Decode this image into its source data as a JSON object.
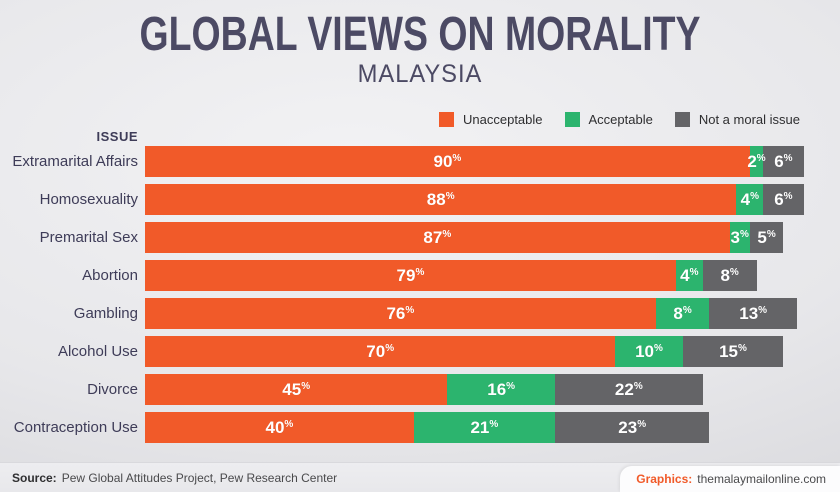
{
  "header": {
    "title": "GLOBAL VIEWS ON MORALITY",
    "subtitle": "MALAYSIA"
  },
  "legend": {
    "items": [
      {
        "label": "Unacceptable",
        "color": "#f15a29"
      },
      {
        "label": "Acceptable",
        "color": "#2cb46e"
      },
      {
        "label": "Not a moral issue",
        "color": "#646467"
      }
    ]
  },
  "chart_data": {
    "type": "bar",
    "stacked": true,
    "orientation": "horizontal",
    "title": "GLOBAL VIEWS ON MORALITY",
    "subtitle": "MALAYSIA",
    "issue_header": "ISSUE",
    "categories": [
      "Extramarital Affairs",
      "Homosexuality",
      "Premarital Sex",
      "Abortion",
      "Gambling",
      "Alcohol Use",
      "Divorce",
      "Contraception Use"
    ],
    "series": [
      {
        "name": "Unacceptable",
        "color": "#f15a29",
        "values": [
          90,
          88,
          87,
          79,
          76,
          70,
          45,
          40
        ]
      },
      {
        "name": "Acceptable",
        "color": "#2cb46e",
        "values": [
          2,
          4,
          3,
          4,
          8,
          10,
          16,
          21
        ]
      },
      {
        "name": "Not a moral issue",
        "color": "#646467",
        "values": [
          6,
          6,
          5,
          8,
          13,
          15,
          22,
          23
        ]
      }
    ],
    "value_suffix": "%",
    "xlim": [
      0,
      100
    ],
    "grid": false,
    "legend_position": "top-right",
    "value_labels": "inside-center"
  },
  "footer": {
    "source_label": "Source:",
    "source_text": "Pew Global Attitudes Project, Pew Research Center",
    "graphics_label": "Graphics:",
    "graphics_text": "themalaymailonline.com"
  },
  "colors": {
    "unacceptable": "#f15a29",
    "acceptable": "#2cb46e",
    "not_moral_issue": "#646467",
    "title_text": "#4c4a64",
    "label_text": "#3e3c58",
    "background": "#e7e7ea"
  }
}
